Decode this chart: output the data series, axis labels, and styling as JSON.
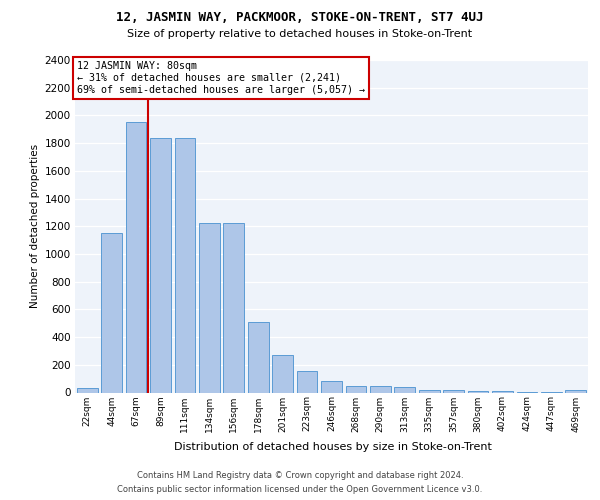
{
  "title1": "12, JASMIN WAY, PACKMOOR, STOKE-ON-TRENT, ST7 4UJ",
  "title2": "Size of property relative to detached houses in Stoke-on-Trent",
  "xlabel": "Distribution of detached houses by size in Stoke-on-Trent",
  "ylabel": "Number of detached properties",
  "footer1": "Contains HM Land Registry data © Crown copyright and database right 2024.",
  "footer2": "Contains public sector information licensed under the Open Government Licence v3.0.",
  "categories": [
    "22sqm",
    "44sqm",
    "67sqm",
    "89sqm",
    "111sqm",
    "134sqm",
    "156sqm",
    "178sqm",
    "201sqm",
    "223sqm",
    "246sqm",
    "268sqm",
    "290sqm",
    "313sqm",
    "335sqm",
    "357sqm",
    "380sqm",
    "402sqm",
    "424sqm",
    "447sqm",
    "469sqm"
  ],
  "values": [
    30,
    1150,
    1950,
    1840,
    1840,
    1220,
    1220,
    510,
    270,
    155,
    80,
    50,
    45,
    40,
    20,
    18,
    12,
    8,
    5,
    3,
    20
  ],
  "bar_color": "#aec6e8",
  "bar_edge_color": "#5b9bd5",
  "annotation_title": "12 JASMIN WAY: 80sqm",
  "annotation_line1": "← 31% of detached houses are smaller (2,241)",
  "annotation_line2": "69% of semi-detached houses are larger (5,057) →",
  "vline_color": "#cc0000",
  "bg_color": "#eef3fa",
  "ylim_max": 2400,
  "yticks": [
    0,
    200,
    400,
    600,
    800,
    1000,
    1200,
    1400,
    1600,
    1800,
    2000,
    2200,
    2400
  ],
  "vline_x": 2.5
}
